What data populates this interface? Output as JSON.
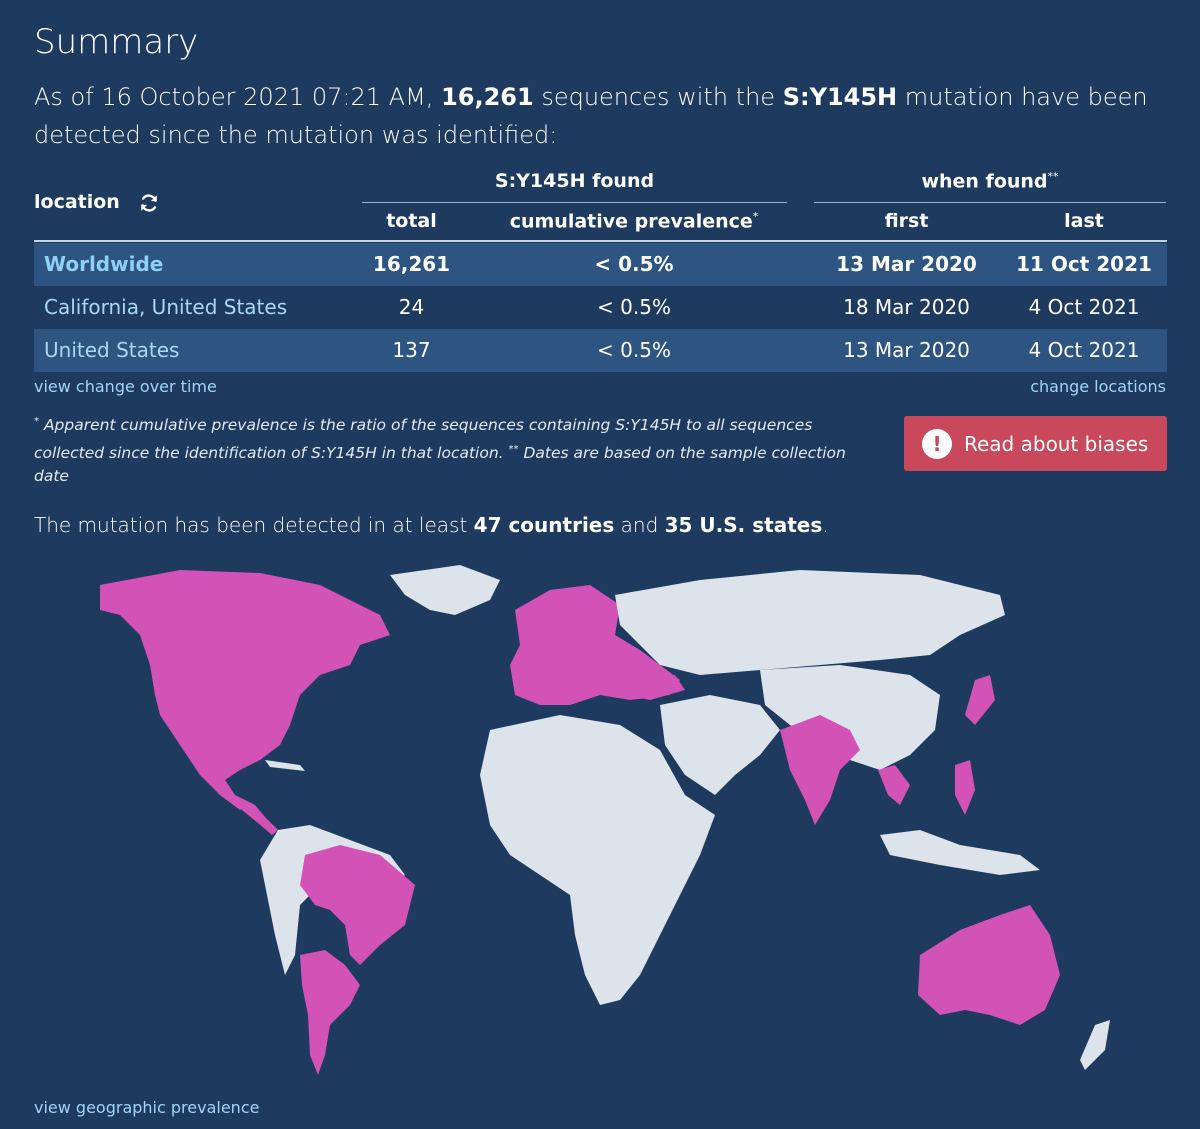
{
  "title": "Summary",
  "intro": {
    "prefix": "As of 16 October 2021 07:21 AM,",
    "count": "16,261",
    "middle": "sequences with the",
    "mutation": "S:Y145H",
    "suffix": "mutation have been detected since the mutation was identified:"
  },
  "table": {
    "location_header": "location",
    "group1_header": "S:Y145H found",
    "group2_header": "when found",
    "group2_sup": "**",
    "col_total": "total",
    "col_prevalence": "cumulative prevalence",
    "col_prevalence_sup": "*",
    "col_first": "first",
    "col_last": "last",
    "rows": [
      {
        "location": "Worldwide",
        "total": "16,261",
        "prevalence": "< 0.5%",
        "first": "13 Mar 2020",
        "last": "11 Oct 2021"
      },
      {
        "location": "California, United States",
        "total": "24",
        "prevalence": "< 0.5%",
        "first": "18 Mar 2020",
        "last": "4 Oct 2021"
      },
      {
        "location": "United States",
        "total": "137",
        "prevalence": "< 0.5%",
        "first": "13 Mar 2020",
        "last": "4 Oct 2021"
      }
    ]
  },
  "links": {
    "view_change": "view change over time",
    "change_locations": "change locations",
    "view_geo": "view geographic prevalence"
  },
  "footnote": {
    "mark1": "*",
    "text1": "Apparent cumulative prevalence is the ratio of the sequences containing S:Y145H to all sequences collected since the identification of S:Y145H in that location.",
    "mark2": "**",
    "text2": "Dates are based on the sample collection date"
  },
  "bias_button": {
    "icon": "!",
    "label": "Read about biases"
  },
  "detected": {
    "prefix": "The mutation has been detected in at least",
    "countries": "47 countries",
    "and": "and",
    "states": "35 U.S. states",
    "period": "."
  },
  "colors": {
    "background": "#1f3a5f",
    "detected": "#d252b6",
    "not_detected": "#dde3ea",
    "link": "#9fd5f7",
    "bias_button": "#c9485b"
  }
}
